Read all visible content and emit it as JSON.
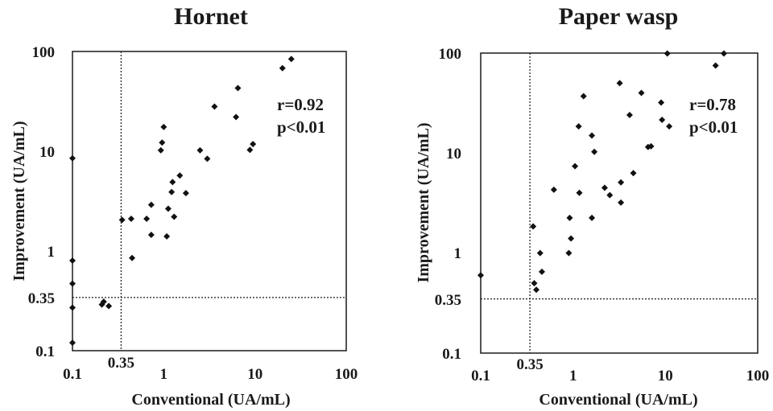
{
  "chart_data": [
    {
      "type": "scatter",
      "title": "Hornet",
      "xlabel": "Conventional (UA/mL)",
      "ylabel": "Improvement (UA/mL)",
      "xscale": "log",
      "yscale": "log",
      "xlim": [
        0.1,
        100
      ],
      "ylim": [
        0.1,
        100
      ],
      "xticks": [
        "0.1",
        "0.35",
        "1",
        "10",
        "100"
      ],
      "yticks": [
        "0.1",
        "0.35",
        "1",
        "10",
        "100"
      ],
      "cutoff": {
        "x": 0.35,
        "y": 0.35
      },
      "grid": false,
      "legend": "none",
      "annotations": [
        "r=0.92",
        "p<0.01"
      ],
      "points": [
        {
          "x": 0.1,
          "y": 8.5
        },
        {
          "x": 0.1,
          "y": 0.8
        },
        {
          "x": 0.1,
          "y": 0.47
        },
        {
          "x": 0.1,
          "y": 0.27
        },
        {
          "x": 0.1,
          "y": 0.12
        },
        {
          "x": 0.21,
          "y": 0.29
        },
        {
          "x": 0.22,
          "y": 0.31
        },
        {
          "x": 0.25,
          "y": 0.28
        },
        {
          "x": 0.35,
          "y": 2.05
        },
        {
          "x": 0.44,
          "y": 2.1
        },
        {
          "x": 0.45,
          "y": 0.85
        },
        {
          "x": 0.65,
          "y": 2.1
        },
        {
          "x": 0.73,
          "y": 2.9
        },
        {
          "x": 0.73,
          "y": 1.45
        },
        {
          "x": 0.93,
          "y": 10.2
        },
        {
          "x": 0.96,
          "y": 12.2
        },
        {
          "x": 1.0,
          "y": 17.5
        },
        {
          "x": 1.08,
          "y": 1.4
        },
        {
          "x": 1.12,
          "y": 2.65
        },
        {
          "x": 1.22,
          "y": 3.9
        },
        {
          "x": 1.25,
          "y": 4.9
        },
        {
          "x": 1.3,
          "y": 2.2
        },
        {
          "x": 1.5,
          "y": 5.7
        },
        {
          "x": 1.75,
          "y": 3.8
        },
        {
          "x": 2.5,
          "y": 10.2
        },
        {
          "x": 3.0,
          "y": 8.4
        },
        {
          "x": 3.6,
          "y": 28
        },
        {
          "x": 6.2,
          "y": 22
        },
        {
          "x": 6.5,
          "y": 43
        },
        {
          "x": 8.8,
          "y": 10.3
        },
        {
          "x": 9.5,
          "y": 11.8
        },
        {
          "x": 20,
          "y": 68
        },
        {
          "x": 25,
          "y": 84
        }
      ]
    },
    {
      "type": "scatter",
      "title": "Paper wasp",
      "xlabel": "Conventional (UA/mL)",
      "ylabel": "Improvement (UA/mL)",
      "xscale": "log",
      "yscale": "log",
      "xlim": [
        0.1,
        100
      ],
      "ylim": [
        0.1,
        100
      ],
      "xticks": [
        "0.1",
        "0.35",
        "1",
        "10",
        "100"
      ],
      "yticks": [
        "0.1",
        "0.35",
        "1",
        "10",
        "100"
      ],
      "cutoff": {
        "x": 0.35,
        "y": 0.35
      },
      "grid": false,
      "legend": "none",
      "annotations": [
        "r=0.78",
        "p<0.01"
      ],
      "points": [
        {
          "x": 0.1,
          "y": 0.6
        },
        {
          "x": 0.37,
          "y": 1.85
        },
        {
          "x": 0.38,
          "y": 0.5
        },
        {
          "x": 0.4,
          "y": 0.43
        },
        {
          "x": 0.44,
          "y": 1.0
        },
        {
          "x": 0.46,
          "y": 0.65
        },
        {
          "x": 0.62,
          "y": 4.3
        },
        {
          "x": 0.9,
          "y": 1.0
        },
        {
          "x": 0.92,
          "y": 2.25
        },
        {
          "x": 0.95,
          "y": 1.4
        },
        {
          "x": 1.05,
          "y": 7.4
        },
        {
          "x": 1.15,
          "y": 18.5
        },
        {
          "x": 1.17,
          "y": 4.0
        },
        {
          "x": 1.3,
          "y": 37
        },
        {
          "x": 1.6,
          "y": 15
        },
        {
          "x": 1.6,
          "y": 2.25
        },
        {
          "x": 1.7,
          "y": 10.3
        },
        {
          "x": 2.2,
          "y": 4.5
        },
        {
          "x": 2.5,
          "y": 3.8
        },
        {
          "x": 3.2,
          "y": 50
        },
        {
          "x": 3.3,
          "y": 5.1
        },
        {
          "x": 3.3,
          "y": 3.2
        },
        {
          "x": 4.1,
          "y": 24
        },
        {
          "x": 4.5,
          "y": 6.3
        },
        {
          "x": 5.5,
          "y": 40
        },
        {
          "x": 6.5,
          "y": 11.5
        },
        {
          "x": 7.0,
          "y": 11.7
        },
        {
          "x": 9.0,
          "y": 32
        },
        {
          "x": 9.2,
          "y": 21.5
        },
        {
          "x": 10.5,
          "y": 99
        },
        {
          "x": 11,
          "y": 18.5
        },
        {
          "x": 35,
          "y": 75
        },
        {
          "x": 43,
          "y": 99
        }
      ]
    }
  ]
}
